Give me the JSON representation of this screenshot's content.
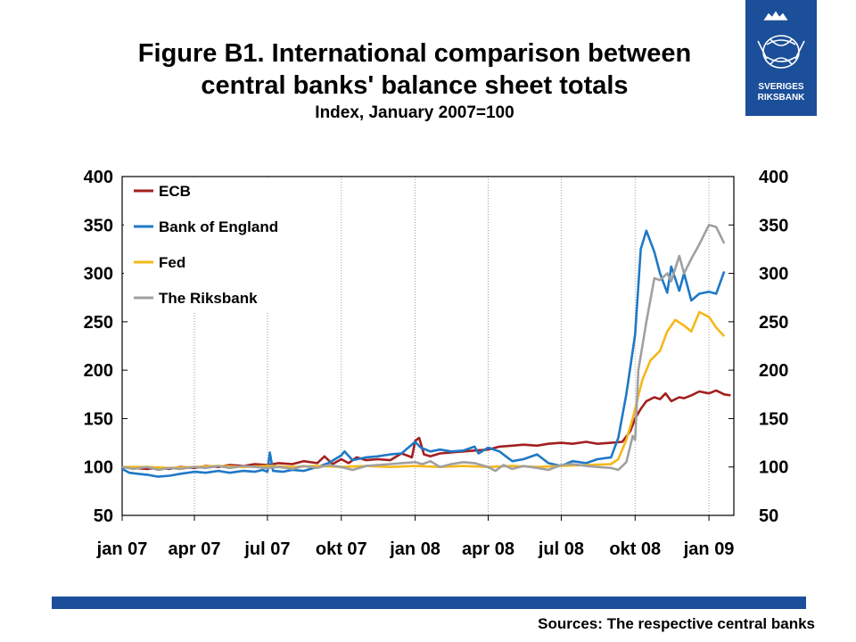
{
  "logo": {
    "line1": "SVERIGES",
    "line2": "RIKSBANK"
  },
  "source": "Sources: The respective central banks",
  "chart_data": {
    "type": "line",
    "title": [
      "Figure B1. International comparison between",
      "central banks' balance sheet totals"
    ],
    "subtitle": "Index, January 2007=100",
    "xlabel": "",
    "ylabel": "",
    "ylim": [
      50,
      400
    ],
    "yticks": [
      50,
      100,
      150,
      200,
      250,
      300,
      350,
      400
    ],
    "y_axis_right": true,
    "grid_x": true,
    "grid_y": false,
    "legend_position": "top-left",
    "x_tick_labels": [
      "jan 07",
      "apr 07",
      "jul 07",
      "okt 07",
      "jan 08",
      "apr 08",
      "jul 08",
      "okt 08",
      "jan 09"
    ],
    "x_ticks": [
      "2007-01-01",
      "2007-04-01",
      "2007-07-01",
      "2007-10-01",
      "2008-01-01",
      "2008-04-01",
      "2008-07-01",
      "2008-10-01",
      "2009-01-01"
    ],
    "xlim": [
      "2007-01-01",
      "2009-02-01"
    ],
    "series": [
      {
        "name": "ECB",
        "color": "#a31f1f",
        "points": [
          [
            "2007-01-01",
            100
          ],
          [
            "2007-01-15",
            99
          ],
          [
            "2007-02-01",
            98
          ],
          [
            "2007-02-15",
            99
          ],
          [
            "2007-03-01",
            98
          ],
          [
            "2007-03-15",
            100
          ],
          [
            "2007-04-01",
            99
          ],
          [
            "2007-04-15",
            101
          ],
          [
            "2007-05-01",
            100
          ],
          [
            "2007-05-15",
            102
          ],
          [
            "2007-06-01",
            101
          ],
          [
            "2007-06-15",
            103
          ],
          [
            "2007-07-01",
            102
          ],
          [
            "2007-07-15",
            104
          ],
          [
            "2007-08-01",
            103
          ],
          [
            "2007-08-15",
            106
          ],
          [
            "2007-09-01",
            104
          ],
          [
            "2007-09-10",
            111
          ],
          [
            "2007-09-20",
            103
          ],
          [
            "2007-10-01",
            108
          ],
          [
            "2007-10-10",
            104
          ],
          [
            "2007-10-20",
            110
          ],
          [
            "2007-11-01",
            107
          ],
          [
            "2007-11-15",
            108
          ],
          [
            "2007-12-01",
            107
          ],
          [
            "2007-12-15",
            114
          ],
          [
            "2007-12-28",
            110
          ],
          [
            "2008-01-01",
            127
          ],
          [
            "2008-01-06",
            130
          ],
          [
            "2008-01-12",
            113
          ],
          [
            "2008-01-20",
            111
          ],
          [
            "2008-02-01",
            114
          ],
          [
            "2008-02-15",
            115
          ],
          [
            "2008-03-01",
            116
          ],
          [
            "2008-03-15",
            117
          ],
          [
            "2008-04-01",
            118
          ],
          [
            "2008-04-15",
            121
          ],
          [
            "2008-05-01",
            122
          ],
          [
            "2008-05-15",
            123
          ],
          [
            "2008-06-01",
            122
          ],
          [
            "2008-06-15",
            124
          ],
          [
            "2008-07-01",
            125
          ],
          [
            "2008-07-15",
            124
          ],
          [
            "2008-08-01",
            126
          ],
          [
            "2008-08-15",
            124
          ],
          [
            "2008-09-01",
            125
          ],
          [
            "2008-09-15",
            126
          ],
          [
            "2008-09-25",
            137
          ],
          [
            "2008-10-01",
            150
          ],
          [
            "2008-10-08",
            160
          ],
          [
            "2008-10-15",
            168
          ],
          [
            "2008-10-25",
            172
          ],
          [
            "2008-11-01",
            170
          ],
          [
            "2008-11-08",
            176
          ],
          [
            "2008-11-15",
            168
          ],
          [
            "2008-11-25",
            172
          ],
          [
            "2008-12-01",
            171
          ],
          [
            "2008-12-10",
            174
          ],
          [
            "2008-12-20",
            178
          ],
          [
            "2009-01-01",
            176
          ],
          [
            "2009-01-10",
            179
          ],
          [
            "2009-01-20",
            175
          ],
          [
            "2009-01-28",
            174
          ]
        ]
      },
      {
        "name": "Bank of England",
        "color": "#1f78c6",
        "points": [
          [
            "2007-01-01",
            98
          ],
          [
            "2007-01-10",
            94
          ],
          [
            "2007-01-20",
            93
          ],
          [
            "2007-02-01",
            92
          ],
          [
            "2007-02-15",
            90
          ],
          [
            "2007-03-01",
            91
          ],
          [
            "2007-03-15",
            93
          ],
          [
            "2007-04-01",
            95
          ],
          [
            "2007-04-15",
            94
          ],
          [
            "2007-05-01",
            96
          ],
          [
            "2007-05-15",
            94
          ],
          [
            "2007-06-01",
            96
          ],
          [
            "2007-06-15",
            95
          ],
          [
            "2007-06-25",
            97
          ],
          [
            "2007-07-01",
            95
          ],
          [
            "2007-07-04",
            115
          ],
          [
            "2007-07-08",
            96
          ],
          [
            "2007-07-20",
            95
          ],
          [
            "2007-08-01",
            97
          ],
          [
            "2007-08-15",
            96
          ],
          [
            "2007-09-01",
            100
          ],
          [
            "2007-09-15",
            104
          ],
          [
            "2007-10-01",
            112
          ],
          [
            "2007-10-05",
            116
          ],
          [
            "2007-10-15",
            107
          ],
          [
            "2007-11-01",
            110
          ],
          [
            "2007-11-15",
            111
          ],
          [
            "2007-12-01",
            113
          ],
          [
            "2007-12-15",
            114
          ],
          [
            "2008-01-01",
            126
          ],
          [
            "2008-01-08",
            120
          ],
          [
            "2008-01-20",
            116
          ],
          [
            "2008-02-01",
            118
          ],
          [
            "2008-02-15",
            116
          ],
          [
            "2008-03-01",
            117
          ],
          [
            "2008-03-15",
            121
          ],
          [
            "2008-03-20",
            114
          ],
          [
            "2008-04-01",
            120
          ],
          [
            "2008-04-15",
            116
          ],
          [
            "2008-05-01",
            106
          ],
          [
            "2008-05-15",
            108
          ],
          [
            "2008-06-01",
            113
          ],
          [
            "2008-06-15",
            104
          ],
          [
            "2008-07-01",
            101
          ],
          [
            "2008-07-15",
            106
          ],
          [
            "2008-08-01",
            104
          ],
          [
            "2008-08-15",
            108
          ],
          [
            "2008-09-01",
            110
          ],
          [
            "2008-09-10",
            130
          ],
          [
            "2008-09-20",
            175
          ],
          [
            "2008-09-28",
            220
          ],
          [
            "2008-10-01",
            237
          ],
          [
            "2008-10-08",
            325
          ],
          [
            "2008-10-15",
            344
          ],
          [
            "2008-10-25",
            322
          ],
          [
            "2008-11-01",
            300
          ],
          [
            "2008-11-10",
            280
          ],
          [
            "2008-11-15",
            307
          ],
          [
            "2008-11-25",
            282
          ],
          [
            "2008-12-01",
            300
          ],
          [
            "2008-12-10",
            272
          ],
          [
            "2008-12-20",
            279
          ],
          [
            "2009-01-01",
            281
          ],
          [
            "2009-01-10",
            279
          ],
          [
            "2009-01-20",
            302
          ]
        ]
      },
      {
        "name": "Fed",
        "color": "#f5b81a",
        "points": [
          [
            "2007-01-01",
            100
          ],
          [
            "2007-02-01",
            100
          ],
          [
            "2007-03-01",
            99
          ],
          [
            "2007-04-01",
            100
          ],
          [
            "2007-05-01",
            101
          ],
          [
            "2007-06-01",
            100
          ],
          [
            "2007-07-01",
            101
          ],
          [
            "2007-08-01",
            100
          ],
          [
            "2007-09-01",
            101
          ],
          [
            "2007-10-01",
            100
          ],
          [
            "2007-11-01",
            101
          ],
          [
            "2007-12-01",
            100
          ],
          [
            "2008-01-01",
            101
          ],
          [
            "2008-02-01",
            100
          ],
          [
            "2008-03-01",
            101
          ],
          [
            "2008-04-01",
            100
          ],
          [
            "2008-05-01",
            101
          ],
          [
            "2008-06-01",
            100
          ],
          [
            "2008-07-01",
            101
          ],
          [
            "2008-08-01",
            102
          ],
          [
            "2008-09-01",
            103
          ],
          [
            "2008-09-10",
            108
          ],
          [
            "2008-09-20",
            128
          ],
          [
            "2008-09-28",
            150
          ],
          [
            "2008-10-01",
            160
          ],
          [
            "2008-10-10",
            190
          ],
          [
            "2008-10-20",
            210
          ],
          [
            "2008-11-01",
            220
          ],
          [
            "2008-11-10",
            240
          ],
          [
            "2008-11-20",
            252
          ],
          [
            "2008-12-01",
            246
          ],
          [
            "2008-12-10",
            240
          ],
          [
            "2008-12-20",
            260
          ],
          [
            "2009-01-01",
            255
          ],
          [
            "2009-01-10",
            244
          ],
          [
            "2009-01-20",
            235
          ]
        ]
      },
      {
        "name": "The Riksbank",
        "color": "#a0a0a0",
        "points": [
          [
            "2007-01-01",
            100
          ],
          [
            "2007-01-15",
            98
          ],
          [
            "2007-02-01",
            100
          ],
          [
            "2007-02-15",
            97
          ],
          [
            "2007-03-01",
            99
          ],
          [
            "2007-03-15",
            98
          ],
          [
            "2007-04-01",
            100
          ],
          [
            "2007-04-15",
            99
          ],
          [
            "2007-05-01",
            101
          ],
          [
            "2007-05-15",
            99
          ],
          [
            "2007-06-01",
            101
          ],
          [
            "2007-06-15",
            100
          ],
          [
            "2007-07-01",
            99
          ],
          [
            "2007-07-15",
            100
          ],
          [
            "2007-08-01",
            98
          ],
          [
            "2007-08-15",
            101
          ],
          [
            "2007-09-01",
            99
          ],
          [
            "2007-09-15",
            102
          ],
          [
            "2007-10-01",
            100
          ],
          [
            "2007-10-15",
            97
          ],
          [
            "2007-11-01",
            101
          ],
          [
            "2007-11-15",
            102
          ],
          [
            "2007-12-01",
            103
          ],
          [
            "2007-12-15",
            104
          ],
          [
            "2008-01-01",
            105
          ],
          [
            "2008-01-10",
            103
          ],
          [
            "2008-01-20",
            106
          ],
          [
            "2008-02-01",
            100
          ],
          [
            "2008-02-15",
            103
          ],
          [
            "2008-03-01",
            105
          ],
          [
            "2008-03-15",
            104
          ],
          [
            "2008-04-01",
            100
          ],
          [
            "2008-04-10",
            96
          ],
          [
            "2008-04-20",
            102
          ],
          [
            "2008-05-01",
            98
          ],
          [
            "2008-05-15",
            101
          ],
          [
            "2008-06-01",
            99
          ],
          [
            "2008-06-15",
            97
          ],
          [
            "2008-07-01",
            102
          ],
          [
            "2008-07-15",
            103
          ],
          [
            "2008-08-01",
            101
          ],
          [
            "2008-08-15",
            100
          ],
          [
            "2008-09-01",
            99
          ],
          [
            "2008-09-10",
            97
          ],
          [
            "2008-09-20",
            105
          ],
          [
            "2008-09-28",
            132
          ],
          [
            "2008-10-01",
            128
          ],
          [
            "2008-10-05",
            200
          ],
          [
            "2008-10-15",
            250
          ],
          [
            "2008-10-25",
            295
          ],
          [
            "2008-11-01",
            293
          ],
          [
            "2008-11-10",
            300
          ],
          [
            "2008-11-15",
            292
          ],
          [
            "2008-11-25",
            318
          ],
          [
            "2008-12-01",
            300
          ],
          [
            "2008-12-10",
            315
          ],
          [
            "2008-12-20",
            330
          ],
          [
            "2009-01-01",
            350
          ],
          [
            "2009-01-10",
            348
          ],
          [
            "2009-01-20",
            331
          ]
        ]
      }
    ]
  }
}
